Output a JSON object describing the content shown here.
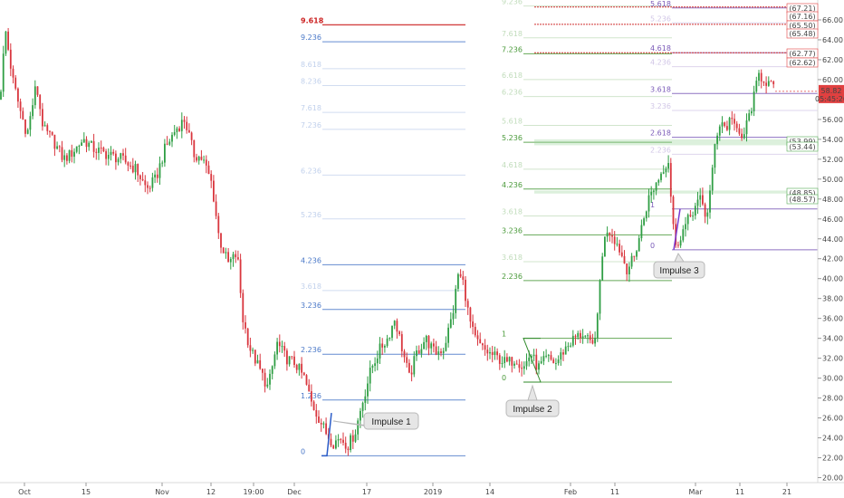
{
  "chart_data": {
    "type": "candlestick",
    "price_axis": {
      "ticks": [
        "20.00",
        "22.00",
        "24.00",
        "26.00",
        "28.00",
        "30.00",
        "32.00",
        "34.00",
        "36.00",
        "38.00",
        "40.00",
        "42.00",
        "44.00",
        "46.00",
        "48.00",
        "50.00",
        "52.00",
        "54.00",
        "56.00",
        "58.00",
        "60.00",
        "62.00",
        "64.00",
        "66.00"
      ],
      "ylim": [
        19.5,
        68.0
      ]
    },
    "time_axis": {
      "ticks": [
        "Oct",
        "15",
        "Nov",
        "12",
        "19:00",
        "Dec",
        "17",
        "2019",
        "14",
        "Feb",
        "11",
        "Mar",
        "11",
        "21"
      ]
    },
    "last_price": {
      "value": "58.82",
      "timer": "05:45:26",
      "color": "#e04040"
    },
    "price_tags": [
      {
        "text": "(67.21)",
        "color": "#e04040"
      },
      {
        "text": "(67.16)",
        "color": "#e04040"
      },
      {
        "text": "(65.50)",
        "color": "#e04040"
      },
      {
        "text": "(65.48)",
        "color": "#e04040"
      },
      {
        "text": "(62.77)",
        "color": "#e04040"
      },
      {
        "text": "(62.62)",
        "color": "#e04040"
      },
      {
        "text": "(53.99)",
        "color": "#55aa55"
      },
      {
        "text": "(53.44)",
        "color": "#55aa55"
      },
      {
        "text": "(48.85)",
        "color": "#55aa55"
      },
      {
        "text": "(48.57)",
        "color": "#55aa55"
      }
    ],
    "fib_group_1": {
      "color": "#4a78c8",
      "levels": [
        {
          "label": "9.618",
          "price": 65.5,
          "color": "#cc2222",
          "bold": true
        },
        {
          "label": "9.236",
          "price": 63.8,
          "faint": false
        },
        {
          "label": "8.618",
          "price": 61.1,
          "faint": true
        },
        {
          "label": "8.236",
          "price": 59.4,
          "faint": true
        },
        {
          "label": "7.618",
          "price": 56.7,
          "faint": true
        },
        {
          "label": "7.236",
          "price": 55.0,
          "faint": true
        },
        {
          "label": "6.236",
          "price": 50.4,
          "faint": true
        },
        {
          "label": "5.236",
          "price": 46.0,
          "faint": true
        },
        {
          "label": "4.236",
          "price": 41.4,
          "faint": false
        },
        {
          "label": "3.618",
          "price": 38.8,
          "faint": true
        },
        {
          "label": "3.236",
          "price": 36.9,
          "faint": false
        },
        {
          "label": "2.236",
          "price": 32.4,
          "faint": false
        },
        {
          "label": "1.236",
          "price": 27.8,
          "faint": false
        },
        {
          "label": "0",
          "price": 22.2,
          "faint": false
        }
      ]
    },
    "fib_group_2": {
      "color": "#4a9a3a",
      "levels": [
        {
          "label": "9.236",
          "price": 67.4,
          "faint": true
        },
        {
          "label": "7.618",
          "price": 64.2,
          "faint": true
        },
        {
          "label": "7.236",
          "price": 62.6,
          "faint": false
        },
        {
          "label": "6.618",
          "price": 60.0,
          "faint": true
        },
        {
          "label": "6.236",
          "price": 58.3,
          "faint": true
        },
        {
          "label": "5.618",
          "price": 55.4,
          "faint": true
        },
        {
          "label": "5.236",
          "price": 53.7,
          "faint": false
        },
        {
          "label": "4.618",
          "price": 51.0,
          "faint": true
        },
        {
          "label": "4.236",
          "price": 49.0,
          "faint": false
        },
        {
          "label": "3.618",
          "price": 46.3,
          "faint": true
        },
        {
          "label": "3.236",
          "price": 44.4,
          "faint": false
        },
        {
          "label": "3.618",
          "price": 41.7,
          "faint": true
        },
        {
          "label": "2.236",
          "price": 39.8,
          "faint": false
        },
        {
          "label": "1",
          "price": 34.0,
          "faint": false
        },
        {
          "label": "0",
          "price": 29.6,
          "faint": false
        }
      ]
    },
    "fib_group_3": {
      "color": "#7a5ab8",
      "levels": [
        {
          "label": "5.618",
          "price": 67.2,
          "faint": false
        },
        {
          "label": "5.236",
          "price": 65.7,
          "faint": true
        },
        {
          "label": "4.618",
          "price": 62.7,
          "faint": false
        },
        {
          "label": "4.236",
          "price": 61.3,
          "faint": true
        },
        {
          "label": "3.618",
          "price": 58.6,
          "faint": false
        },
        {
          "label": "3.236",
          "price": 56.9,
          "faint": true
        },
        {
          "label": "2.618",
          "price": 54.2,
          "faint": false
        },
        {
          "label": "2.236",
          "price": 52.5,
          "faint": true
        },
        {
          "label": "1",
          "price": 47.0,
          "faint": false
        },
        {
          "label": "0",
          "price": 42.9,
          "faint": false
        }
      ]
    },
    "annotations": [
      {
        "text": "Impulse 1"
      },
      {
        "text": "Impulse 2"
      },
      {
        "text": "Impulse 3"
      }
    ]
  }
}
